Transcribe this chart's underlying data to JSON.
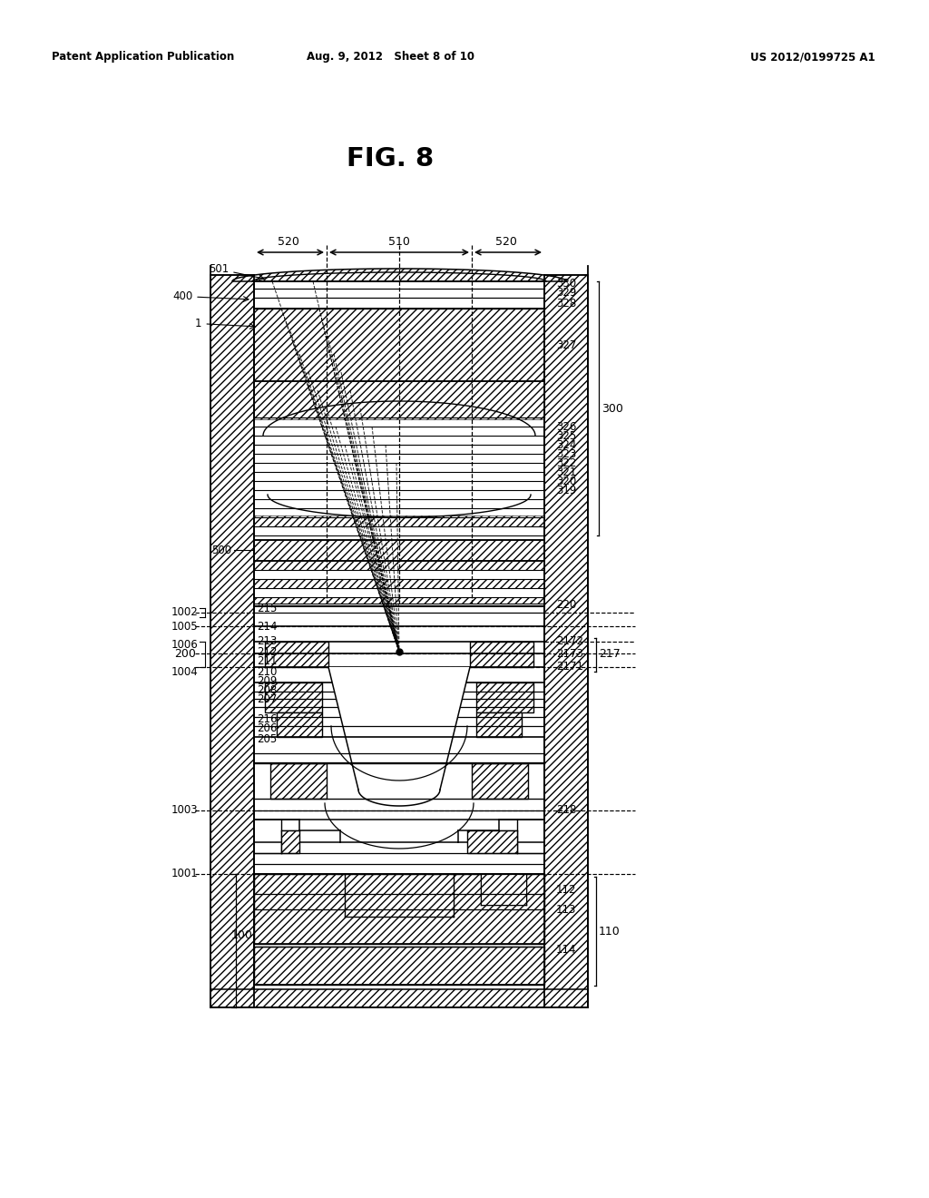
{
  "header_left": "Patent Application Publication",
  "header_mid": "Aug. 9, 2012   Sheet 8 of 10",
  "header_right": "US 2012/0199725 A1",
  "fig_label": "FIG. 8",
  "bg_color": "#ffffff",
  "line_color": "#000000"
}
